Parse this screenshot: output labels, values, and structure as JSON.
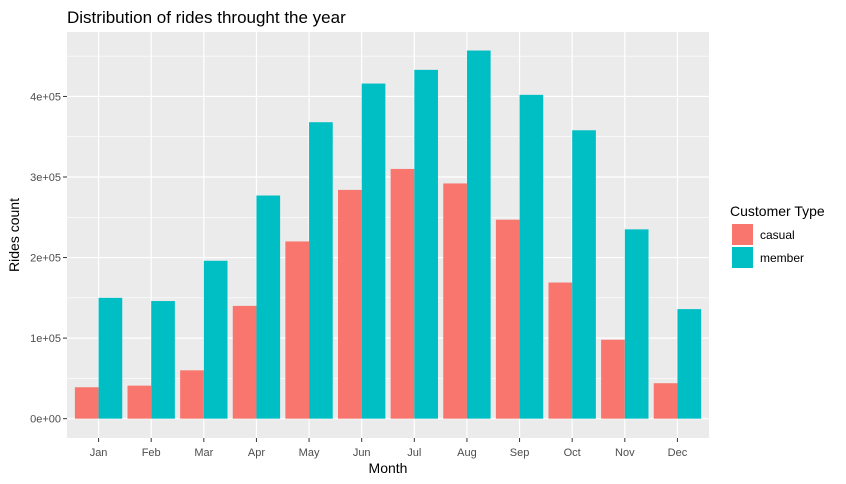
{
  "chart_data": {
    "type": "bar",
    "title": "Distribution of rides throught the year",
    "xlabel": "Month",
    "ylabel": "Rides count",
    "categories": [
      "Jan",
      "Feb",
      "Mar",
      "Apr",
      "May",
      "Jun",
      "Jul",
      "Aug",
      "Sep",
      "Oct",
      "Nov",
      "Dec"
    ],
    "series": [
      {
        "name": "casual",
        "color": "#F8766D",
        "values": [
          39000,
          41000,
          60000,
          140000,
          220000,
          284000,
          310000,
          292000,
          247000,
          169000,
          98000,
          44000
        ]
      },
      {
        "name": "member",
        "color": "#00BFC4",
        "values": [
          150000,
          146000,
          196000,
          277000,
          368000,
          416000,
          433000,
          457000,
          402000,
          358000,
          235000,
          136000
        ]
      }
    ],
    "ylim": [
      -24000,
      480000
    ],
    "yticks": [
      0,
      100000,
      200000,
      300000,
      400000
    ],
    "ytick_labels": [
      "0e+00",
      "1e+05",
      "2e+05",
      "3e+05",
      "4e+05"
    ],
    "legend": {
      "title": "Customer Type",
      "position": "right"
    },
    "grid": true,
    "panel_background": "#EBEBEB",
    "grid_color": "#FFFFFF"
  }
}
